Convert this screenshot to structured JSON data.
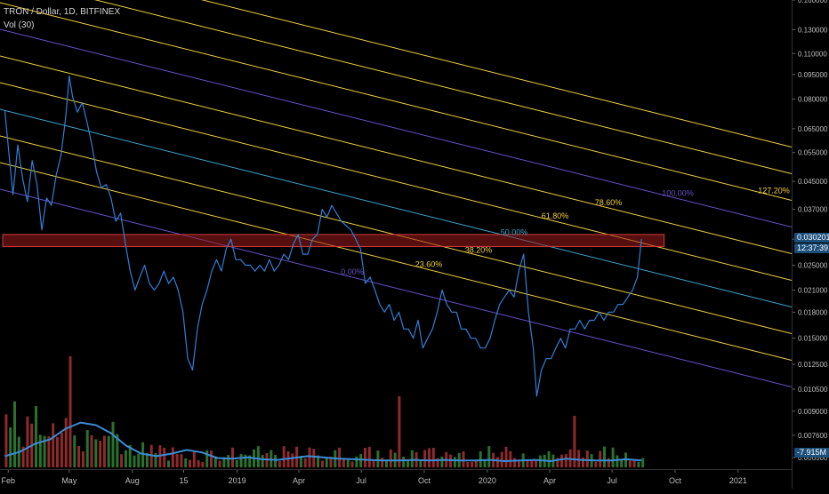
{
  "legend": {
    "symbol": "TRON / Dollar, 1D, BITFINEX",
    "volume": "Vol (30)"
  },
  "price_tags": {
    "last_price": "0.030201",
    "countdown": "12:37:39",
    "volume_last": "7.915M"
  },
  "colors": {
    "background": "#000000",
    "price_line": "#2f7fd8",
    "fib_line": "#f0d03e",
    "fib_teal": "#3aa6c9",
    "fib_purple": "#6a50c8",
    "resistance_box": "#9b1c1c",
    "vol_up": "#2f7d32",
    "vol_down": "#9e2f2f",
    "vol_ma": "#3b8cd8"
  },
  "chart_data": {
    "type": "line",
    "title": "TRON / Dollar, 1D, BITFINEX",
    "y_scale": "log",
    "ylim": [
      0.006,
      0.16
    ],
    "y_ticks": [
      "0.160000",
      "0.130000",
      "0.110000",
      "0.095000",
      "0.080000",
      "0.065000",
      "0.055000",
      "0.045000",
      "0.037000",
      "0.030000",
      "0.025000",
      "0.021000",
      "0.018000",
      "0.015000",
      "0.012500",
      "0.010500",
      "0.009000",
      "0.007600",
      "0.006500"
    ],
    "y_tick_values": [
      0.16,
      0.13,
      0.11,
      0.095,
      0.08,
      0.065,
      0.055,
      0.045,
      0.037,
      0.03,
      0.025,
      0.021,
      0.018,
      0.015,
      0.0125,
      0.0105,
      0.009,
      0.0076,
      0.0065
    ],
    "x_ticks": [
      {
        "label": "Feb",
        "date": "2018-02-01"
      },
      {
        "label": "May",
        "date": "2018-05-01"
      },
      {
        "label": "Aug",
        "date": "2018-08-01"
      },
      {
        "label": "15",
        "date": "2018-10-15"
      },
      {
        "label": "2019",
        "date": "2019-01-01"
      },
      {
        "label": "Apr",
        "date": "2019-04-01"
      },
      {
        "label": "Jul",
        "date": "2019-07-01"
      },
      {
        "label": "Oct",
        "date": "2019-10-01"
      },
      {
        "label": "2020",
        "date": "2020-01-01"
      },
      {
        "label": "Apr",
        "date": "2020-04-01"
      },
      {
        "label": "Jul",
        "date": "2020-07-01"
      },
      {
        "label": "Oct",
        "date": "2020-10-01"
      },
      {
        "label": "2021",
        "date": "2021-01-01"
      }
    ],
    "xlim": [
      "2018-01-20",
      "2021-03-20"
    ],
    "series": [
      {
        "dates": [
          "2018-01-27",
          "2018-02-03",
          "2018-02-08",
          "2018-02-15",
          "2018-02-22",
          "2018-03-01",
          "2018-03-08",
          "2018-03-15",
          "2018-03-22",
          "2018-03-29",
          "2018-04-05",
          "2018-04-12",
          "2018-04-19",
          "2018-04-26",
          "2018-05-01",
          "2018-05-06",
          "2018-05-13",
          "2018-05-20",
          "2018-05-27",
          "2018-06-03",
          "2018-06-10",
          "2018-06-17",
          "2018-06-24",
          "2018-07-01",
          "2018-07-08",
          "2018-07-15",
          "2018-07-22",
          "2018-07-29",
          "2018-08-05",
          "2018-08-12",
          "2018-08-19",
          "2018-08-26",
          "2018-09-02",
          "2018-09-09",
          "2018-09-16",
          "2018-09-23",
          "2018-09-30",
          "2018-10-07",
          "2018-10-14",
          "2018-10-21",
          "2018-10-28",
          "2018-11-04",
          "2018-11-11",
          "2018-11-18",
          "2018-11-25",
          "2018-12-02",
          "2018-12-09",
          "2018-12-16",
          "2018-12-23",
          "2018-12-30",
          "2019-01-06",
          "2019-01-13",
          "2019-01-20",
          "2019-01-27",
          "2019-02-03",
          "2019-02-10",
          "2019-02-17",
          "2019-02-24",
          "2019-03-03",
          "2019-03-10",
          "2019-03-17",
          "2019-03-24",
          "2019-03-31",
          "2019-04-07",
          "2019-04-14",
          "2019-04-21",
          "2019-04-28",
          "2019-05-05",
          "2019-05-12",
          "2019-05-19",
          "2019-05-26",
          "2019-06-02",
          "2019-06-09",
          "2019-06-16",
          "2019-06-23",
          "2019-06-30",
          "2019-07-07",
          "2019-07-14",
          "2019-07-21",
          "2019-07-28",
          "2019-08-04",
          "2019-08-11",
          "2019-08-18",
          "2019-08-25",
          "2019-09-01",
          "2019-09-08",
          "2019-09-15",
          "2019-09-22",
          "2019-09-29",
          "2019-10-06",
          "2019-10-13",
          "2019-10-20",
          "2019-10-27",
          "2019-11-03",
          "2019-11-10",
          "2019-11-17",
          "2019-11-24",
          "2019-12-01",
          "2019-12-08",
          "2019-12-15",
          "2019-12-22",
          "2019-12-29",
          "2020-01-05",
          "2020-01-12",
          "2020-01-19",
          "2020-01-26",
          "2020-02-02",
          "2020-02-09",
          "2020-02-16",
          "2020-02-23",
          "2020-03-01",
          "2020-03-08",
          "2020-03-13",
          "2020-03-20",
          "2020-03-27",
          "2020-04-03",
          "2020-04-10",
          "2020-04-17",
          "2020-04-24",
          "2020-05-01",
          "2020-05-08",
          "2020-05-15",
          "2020-05-22",
          "2020-05-29",
          "2020-06-05",
          "2020-06-12",
          "2020-06-19",
          "2020-06-26",
          "2020-07-03",
          "2020-07-10",
          "2020-07-17",
          "2020-07-24",
          "2020-07-31",
          "2020-08-07",
          "2020-08-13"
        ],
        "values": [
          0.074,
          0.052,
          0.041,
          0.058,
          0.046,
          0.039,
          0.052,
          0.044,
          0.032,
          0.04,
          0.038,
          0.047,
          0.054,
          0.071,
          0.094,
          0.081,
          0.073,
          0.078,
          0.068,
          0.058,
          0.048,
          0.043,
          0.044,
          0.04,
          0.034,
          0.036,
          0.029,
          0.024,
          0.021,
          0.023,
          0.025,
          0.022,
          0.021,
          0.022,
          0.024,
          0.022,
          0.023,
          0.021,
          0.018,
          0.013,
          0.012,
          0.016,
          0.019,
          0.021,
          0.024,
          0.026,
          0.024,
          0.028,
          0.03,
          0.026,
          0.026,
          0.025,
          0.025,
          0.024,
          0.025,
          0.024,
          0.026,
          0.024,
          0.025,
          0.027,
          0.026,
          0.029,
          0.031,
          0.027,
          0.027,
          0.03,
          0.031,
          0.037,
          0.035,
          0.038,
          0.036,
          0.034,
          0.033,
          0.032,
          0.03,
          0.028,
          0.022,
          0.023,
          0.021,
          0.019,
          0.018,
          0.019,
          0.017,
          0.018,
          0.016,
          0.016,
          0.015,
          0.017,
          0.014,
          0.015,
          0.016,
          0.018,
          0.021,
          0.019,
          0.018,
          0.018,
          0.016,
          0.016,
          0.015,
          0.015,
          0.014,
          0.014,
          0.015,
          0.017,
          0.019,
          0.02,
          0.021,
          0.02,
          0.024,
          0.027,
          0.018,
          0.014,
          0.01,
          0.012,
          0.013,
          0.013,
          0.014,
          0.015,
          0.014,
          0.016,
          0.016,
          0.017,
          0.016,
          0.017,
          0.017,
          0.018,
          0.017,
          0.018,
          0.018,
          0.019,
          0.019,
          0.02,
          0.021,
          0.023,
          0.03
        ]
      }
    ],
    "fib_levels": [
      {
        "label": "0.00%",
        "color": "#6a50c8"
      },
      {
        "label": "23.60%",
        "color": "#f0d03e"
      },
      {
        "label": "38.20%",
        "color": "#f0d03e"
      },
      {
        "label": "50.00%",
        "color": "#3aa6c9"
      },
      {
        "label": "61.80%",
        "color": "#f0d03e"
      },
      {
        "label": "78.60%",
        "color": "#f0d03e"
      },
      {
        "label": "100.00%",
        "color": "#6a50c8"
      },
      {
        "label": "127.20%",
        "color": "#f0d03e"
      },
      {
        "label": "",
        "color": "#f0d03e"
      },
      {
        "label": "",
        "color": "#f0d03e"
      }
    ],
    "resistance_zone": {
      "from": "2018-01-24",
      "to": "2020-09-15",
      "low": 0.0285,
      "high": 0.031
    },
    "volume": {
      "label": "Vol (30)",
      "last": "7.915M",
      "ma_profile": [
        0.18,
        0.25,
        0.38,
        0.45,
        0.62,
        0.72,
        0.68,
        0.55,
        0.35,
        0.22,
        0.18,
        0.22,
        0.28,
        0.24,
        0.15,
        0.14,
        0.16,
        0.13,
        0.12,
        0.15,
        0.18,
        0.16,
        0.14,
        0.13,
        0.12,
        0.11,
        0.11,
        0.12,
        0.11,
        0.12,
        0.11,
        0.11,
        0.12,
        0.1,
        0.11,
        0.12,
        0.1,
        0.14,
        0.12,
        0.11,
        0.11,
        0.13,
        0.11
      ]
    }
  }
}
